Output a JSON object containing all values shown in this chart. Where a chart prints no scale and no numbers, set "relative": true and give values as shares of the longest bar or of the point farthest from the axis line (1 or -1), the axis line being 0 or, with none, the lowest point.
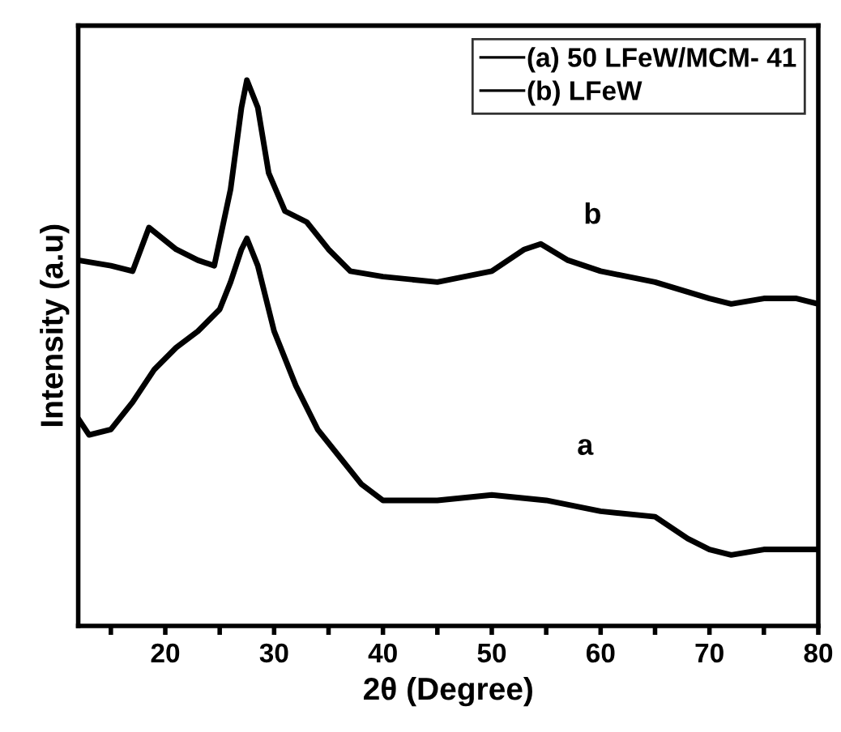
{
  "chart_data": {
    "type": "line",
    "relative": true,
    "xlabel": "2θ (Degree)",
    "ylabel": "Intensity (a.u)",
    "xlim": [
      12,
      80
    ],
    "xticks": [
      {
        "value": 15,
        "label": null
      },
      20,
      {
        "value": 25,
        "label": null
      },
      30,
      {
        "value": 35,
        "label": null
      },
      40,
      {
        "value": 45,
        "label": null
      },
      50,
      {
        "value": 55,
        "label": null
      },
      60,
      {
        "value": 65,
        "label": null
      },
      70,
      {
        "value": 75,
        "label": null
      },
      80
    ],
    "legend": "top right",
    "grid": false,
    "series": [
      {
        "name": "(a) 50 LFeW/MCM- 41",
        "color": "#000000",
        "x": [
          12,
          13,
          15,
          17,
          19,
          21,
          23,
          25,
          26,
          27,
          27.5,
          28.5,
          30,
          32,
          34,
          36,
          38,
          40,
          45,
          50,
          55,
          60,
          65,
          68,
          70,
          72,
          75,
          80
        ],
        "values": [
          0.38,
          0.35,
          0.36,
          0.41,
          0.47,
          0.51,
          0.54,
          0.58,
          0.63,
          0.69,
          0.71,
          0.66,
          0.54,
          0.44,
          0.36,
          0.31,
          0.26,
          0.23,
          0.23,
          0.24,
          0.23,
          0.21,
          0.2,
          0.16,
          0.14,
          0.13,
          0.14,
          0.14
        ]
      },
      {
        "name": "(b) LFeW",
        "color": "#000000",
        "x": [
          12,
          15,
          17,
          18.5,
          21,
          23,
          24.5,
          26,
          27,
          27.5,
          28.5,
          29.5,
          31,
          33,
          35,
          37,
          40,
          45,
          50,
          53,
          54.5,
          57,
          60,
          65,
          70,
          72,
          75,
          78,
          80
        ],
        "values": [
          0.67,
          0.66,
          0.65,
          0.73,
          0.69,
          0.67,
          0.66,
          0.8,
          0.95,
          1,
          0.95,
          0.83,
          0.76,
          0.74,
          0.69,
          0.65,
          0.64,
          0.63,
          0.65,
          0.69,
          0.7,
          0.67,
          0.65,
          0.63,
          0.6,
          0.59,
          0.6,
          0.6,
          0.59
        ]
      }
    ],
    "annotations": [
      "a",
      "b"
    ]
  }
}
